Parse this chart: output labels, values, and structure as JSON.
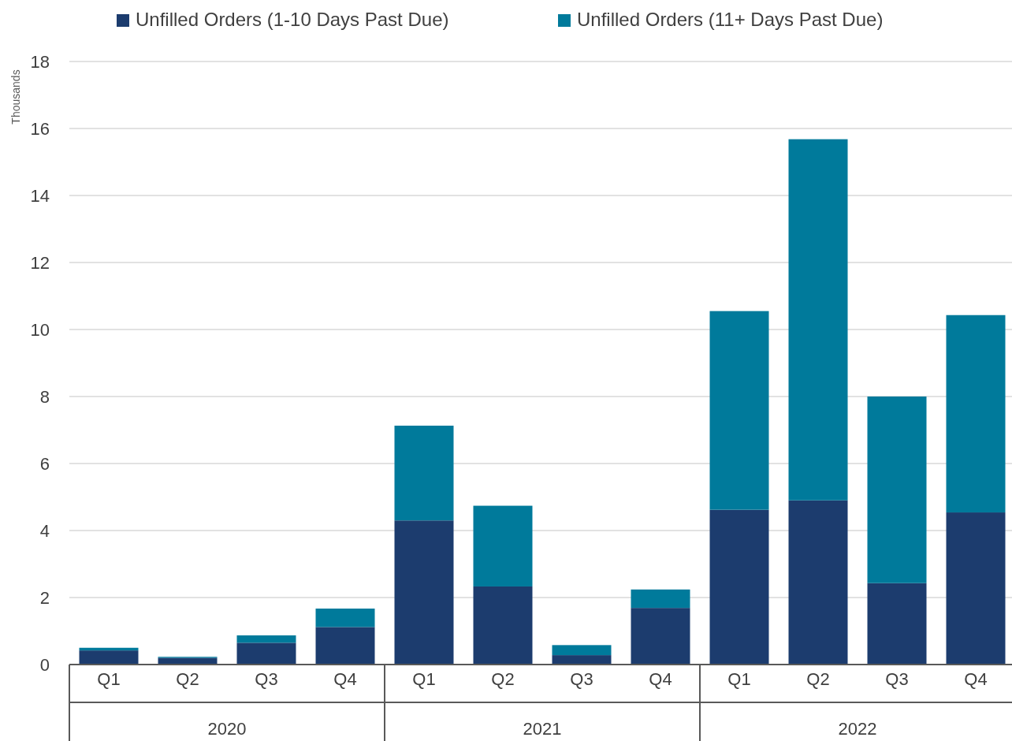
{
  "chart_data": {
    "type": "bar",
    "stacked": true,
    "ylabel": "Thousands",
    "categories": [
      "Q1",
      "Q2",
      "Q3",
      "Q4",
      "Q1",
      "Q2",
      "Q3",
      "Q4",
      "Q1",
      "Q2",
      "Q3",
      "Q4"
    ],
    "series": [
      {
        "name": "Unfilled Orders (1-10 Days Past Due)",
        "color": "#1c3c6e",
        "values": [
          0.42,
          0.2,
          0.65,
          1.12,
          4.3,
          2.33,
          0.28,
          1.69,
          4.62,
          4.9,
          2.43,
          4.54
        ]
      },
      {
        "name": "Unfilled Orders (11+ Days Past Due)",
        "color": "#007a9b",
        "values": [
          0.08,
          0.03,
          0.22,
          0.55,
          2.83,
          2.41,
          0.3,
          0.55,
          5.93,
          10.78,
          5.57,
          5.89
        ]
      }
    ],
    "annotations": [
      "2020",
      "2021",
      "2022"
    ],
    "ylim": [
      0,
      18
    ],
    "yticks": [
      0,
      2,
      4,
      6,
      8,
      10,
      12,
      14,
      16,
      18
    ],
    "grid": "y",
    "legend": "top"
  }
}
